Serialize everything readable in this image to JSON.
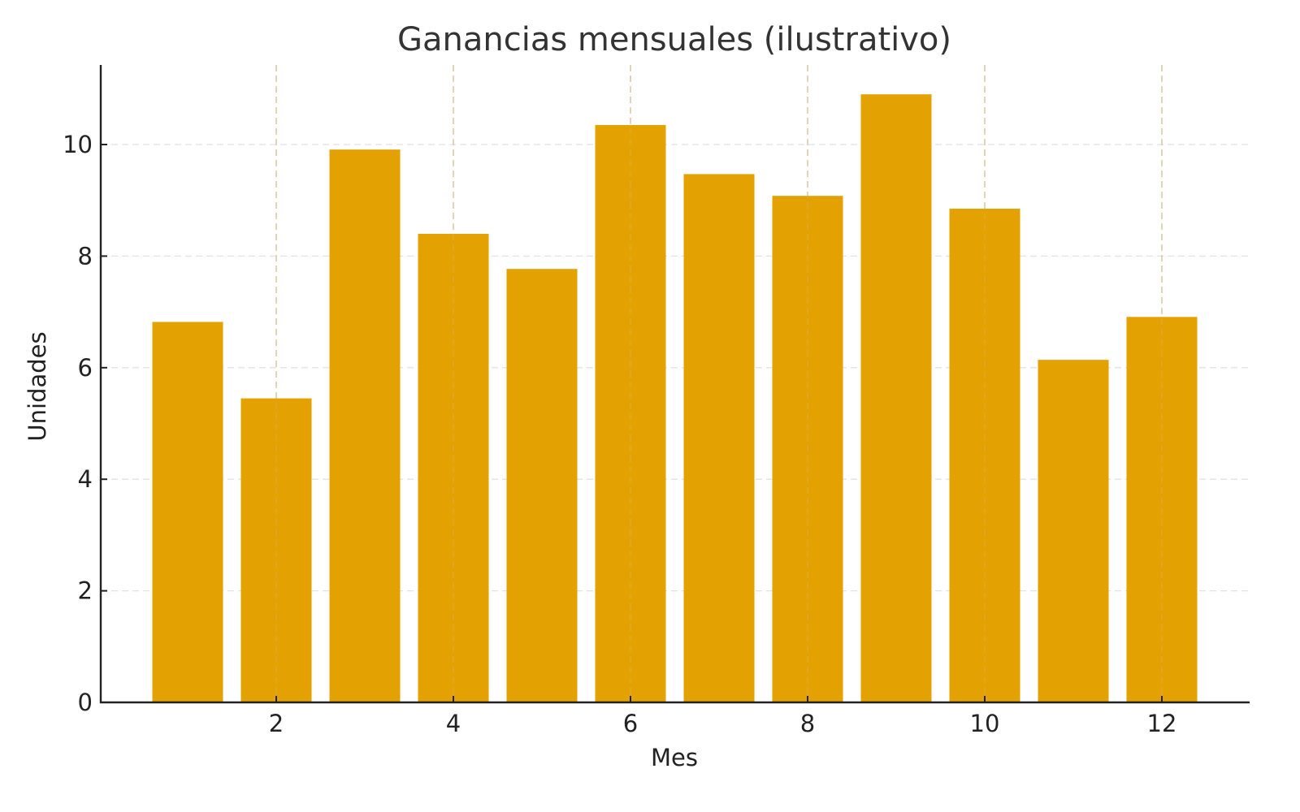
{
  "chart_data": {
    "type": "bar",
    "title": "Ganancias mensuales (ilustrativo)",
    "xlabel": "Mes",
    "ylabel": "Unidades",
    "categories": [
      1,
      2,
      3,
      4,
      5,
      6,
      7,
      8,
      9,
      10,
      11,
      12
    ],
    "values": [
      6.82,
      5.45,
      9.91,
      8.4,
      7.77,
      10.35,
      9.47,
      9.08,
      10.9,
      8.85,
      6.14,
      6.91
    ],
    "xticks": [
      2,
      4,
      6,
      8,
      10,
      12
    ],
    "yticks": [
      0,
      2,
      4,
      6,
      8,
      10
    ],
    "ylim": [
      0,
      11.45
    ],
    "xlim": [
      0.4,
      13.4
    ],
    "grid": true,
    "grid_style": "dashed",
    "legend": null,
    "bar_color": "#E3A102"
  }
}
